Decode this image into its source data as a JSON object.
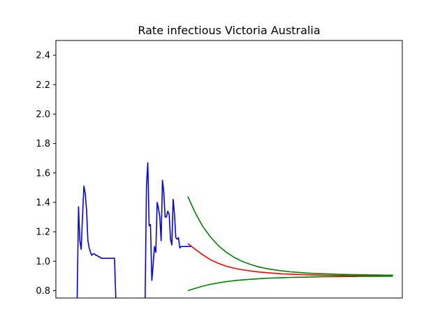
{
  "chart_data": {
    "type": "line",
    "title": "Rate infectious Victoria Australia",
    "xlabel": "",
    "ylabel": "",
    "xlim": [
      0,
      130
    ],
    "ylim": [
      0.75,
      2.5
    ],
    "yticks": [
      "0.8",
      "1.0",
      "1.2",
      "1.4",
      "1.6",
      "1.8",
      "2.0",
      "2.2",
      "2.4"
    ],
    "grid": false,
    "series": [
      {
        "color": "#0000ff",
        "x": [
          8.0,
          8.5,
          9.0,
          9.5,
          10.0,
          10.5,
          11.0,
          11.5,
          12.0,
          12.5,
          13.0,
          13.5,
          14.0,
          14.5,
          15.0,
          15.5,
          16.0,
          16.5,
          17.0,
          17.5,
          18.0,
          18.5,
          19.0,
          19.5,
          20.0,
          20.5,
          21.0,
          21.5,
          22.0,
          22.5
        ],
        "y": [
          0.75,
          1.37,
          1.14,
          1.08,
          1.31,
          1.51,
          1.46,
          1.35,
          1.14,
          1.09,
          1.06,
          1.04,
          1.05,
          1.05,
          1.04,
          1.04,
          1.03,
          1.03,
          1.02,
          1.02,
          1.02,
          1.02,
          1.02,
          1.02,
          1.02,
          1.02,
          1.02,
          1.02,
          1.02,
          0.75
        ]
      },
      {
        "color": "#0000ff",
        "x": [
          33.5,
          34.0,
          34.5,
          35.0,
          35.5,
          36.0,
          36.5,
          37.0,
          37.5,
          38.0,
          38.5,
          39.0,
          39.5,
          40.0,
          40.5,
          41.0,
          41.5,
          42.0,
          42.5,
          43.0,
          43.5,
          44.0,
          44.5,
          45.0,
          45.5,
          46.0,
          46.5,
          47.0,
          47.5,
          48.0,
          48.5,
          49.0,
          49.5,
          50.0,
          50.5,
          51.0
        ],
        "y": [
          0.75,
          1.51,
          1.67,
          1.24,
          1.25,
          0.87,
          0.98,
          1.1,
          1.06,
          1.4,
          1.36,
          1.3,
          1.14,
          1.55,
          1.47,
          1.3,
          1.3,
          1.34,
          1.32,
          1.15,
          1.11,
          1.42,
          1.32,
          1.16,
          1.15,
          1.16,
          1.09,
          1.1,
          1.1,
          1.1,
          1.1,
          1.1,
          1.1,
          1.1,
          1.1,
          1.1
        ]
      },
      {
        "color": "#ff0000",
        "x": [
          49.5,
          52,
          55,
          58,
          61,
          64,
          67,
          70,
          73,
          76,
          79,
          82,
          85,
          88,
          91,
          94,
          97,
          100,
          103,
          106,
          109,
          112,
          115,
          118,
          121,
          124,
          126.5
        ],
        "y": [
          1.12,
          1.085,
          1.045,
          1.01,
          0.985,
          0.966,
          0.952,
          0.942,
          0.934,
          0.927,
          0.922,
          0.918,
          0.914,
          0.912,
          0.91,
          0.908,
          0.906,
          0.905,
          0.904,
          0.903,
          0.902,
          0.902,
          0.901,
          0.901,
          0.901,
          0.9,
          0.9
        ]
      },
      {
        "color": "#008000",
        "x": [
          49.5,
          52,
          55,
          58,
          61,
          64,
          67,
          70,
          73,
          76,
          79,
          82,
          85,
          88,
          91,
          94,
          97,
          100,
          103,
          106,
          109,
          112,
          115,
          118,
          121,
          124,
          126.5
        ],
        "y": [
          1.44,
          1.34,
          1.24,
          1.165,
          1.105,
          1.06,
          1.025,
          0.998,
          0.978,
          0.962,
          0.95,
          0.941,
          0.934,
          0.928,
          0.924,
          0.92,
          0.917,
          0.915,
          0.913,
          0.911,
          0.91,
          0.909,
          0.908,
          0.907,
          0.906,
          0.905,
          0.905
        ]
      },
      {
        "color": "#008000",
        "x": [
          49.5,
          52,
          55,
          58,
          61,
          64,
          67,
          70,
          73,
          76,
          79,
          82,
          85,
          88,
          91,
          94,
          97,
          100,
          103,
          106,
          109,
          112,
          115,
          118,
          121,
          124,
          126.5
        ],
        "y": [
          0.8,
          0.814,
          0.83,
          0.843,
          0.853,
          0.861,
          0.868,
          0.873,
          0.877,
          0.881,
          0.884,
          0.886,
          0.888,
          0.89,
          0.891,
          0.892,
          0.893,
          0.894,
          0.895,
          0.895,
          0.896,
          0.896,
          0.897,
          0.897,
          0.897,
          0.898,
          0.898
        ]
      }
    ]
  }
}
